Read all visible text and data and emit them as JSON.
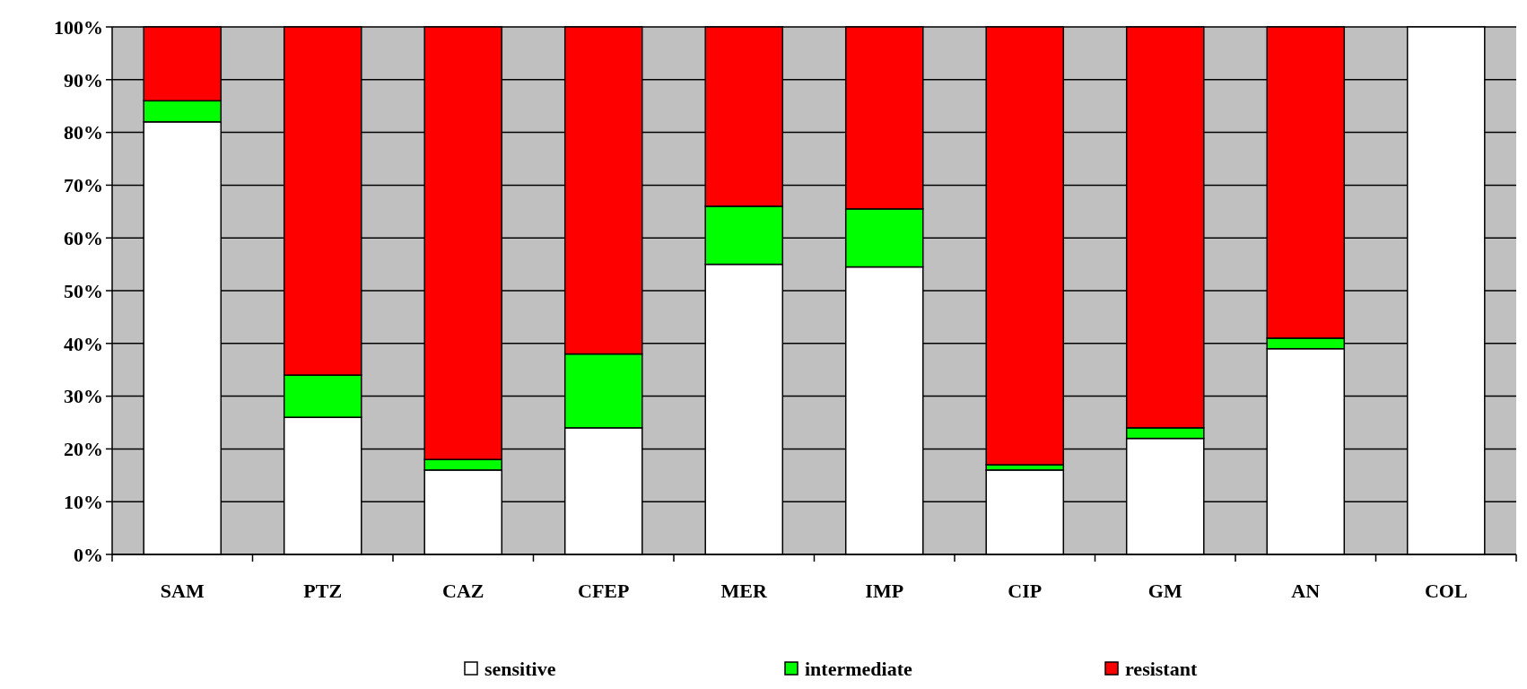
{
  "chart_data": {
    "type": "bar",
    "stacked": true,
    "categories": [
      "SAM",
      "PTZ",
      "CAZ",
      "CFEP",
      "MER",
      "IMP",
      "CIP",
      "GM",
      "AN",
      "COL"
    ],
    "series": [
      {
        "name": "sensitive",
        "color": "#ffffff",
        "values": [
          82,
          26,
          16,
          24,
          55,
          54.5,
          16,
          22,
          39,
          100
        ]
      },
      {
        "name": "intermediate",
        "color": "#00ff00",
        "values": [
          4,
          8,
          2,
          14,
          11,
          11,
          1,
          2,
          2,
          0
        ]
      },
      {
        "name": "resistant",
        "color": "#ff0000",
        "values": [
          14,
          66,
          82,
          62,
          34,
          34.5,
          83,
          76,
          59,
          0
        ]
      }
    ],
    "ylim": [
      0,
      100
    ],
    "yticks": [
      {
        "value": 0,
        "label": "0%"
      },
      {
        "value": 10,
        "label": "10%"
      },
      {
        "value": 20,
        "label": "20%"
      },
      {
        "value": 30,
        "label": "30%"
      },
      {
        "value": 40,
        "label": "40%"
      },
      {
        "value": 50,
        "label": "50%"
      },
      {
        "value": 60,
        "label": "60%"
      },
      {
        "value": 70,
        "label": "70%"
      },
      {
        "value": 80,
        "label": "80%"
      },
      {
        "value": 90,
        "label": "90%"
      },
      {
        "value": 100,
        "label": "100%"
      }
    ],
    "grid": "y",
    "legend": "bottom"
  }
}
